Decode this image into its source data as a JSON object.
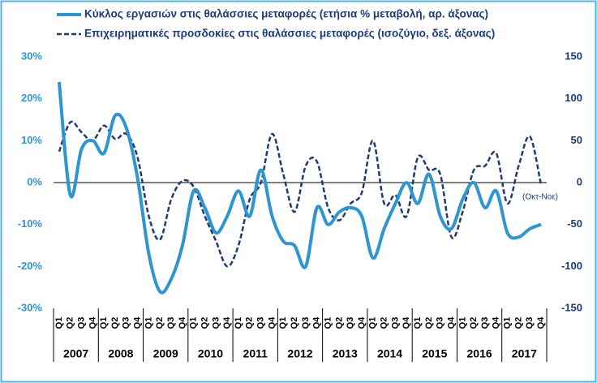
{
  "chart_data": {
    "type": "line",
    "series": [
      {
        "name": "Κύκλος εργασιών στις θαλάσσιες μεταφορές (ετήσια % μεταβολή, αρ. άξονας)",
        "color": "#2e95d3",
        "style": "solid",
        "values": [
          24,
          -3,
          8,
          10,
          7,
          16,
          13,
          1,
          -17,
          -26,
          -23,
          -15,
          -2,
          -6,
          -12,
          -8,
          -2,
          -8,
          3,
          -8,
          -14,
          -15,
          -20,
          -6,
          -10,
          -7,
          -6,
          -8,
          -18,
          -11,
          -5,
          0,
          -5,
          2,
          -8,
          -11,
          -4,
          0,
          -6,
          -2,
          -12,
          -13,
          -11,
          -10
        ]
      },
      {
        "name": "Επιχειρηματικές προσδοκίες στις θαλάσσιες μεταφορές (ισοζύγιο, δεξ. άξονας)",
        "color": "#1f3a78",
        "style": "dashed",
        "axis": "y2",
        "values": [
          37,
          72,
          60,
          50,
          68,
          52,
          58,
          30,
          -40,
          -68,
          -20,
          2,
          -5,
          -40,
          -70,
          -100,
          -75,
          -20,
          0,
          58,
          10,
          -35,
          20,
          25,
          -30,
          -45,
          -25,
          -12,
          50,
          -25,
          -15,
          -40,
          30,
          15,
          10,
          -65,
          -35,
          15,
          20,
          35,
          -25,
          20,
          55,
          -3
        ]
      }
    ],
    "categories": [
      "Q1",
      "Q2",
      "Q3",
      "Q4",
      "Q1",
      "Q2",
      "Q3",
      "Q4",
      "Q1",
      "Q2",
      "Q3",
      "Q4",
      "Q1",
      "Q2",
      "Q3",
      "Q4",
      "Q1",
      "Q2",
      "Q3",
      "Q4",
      "Q1",
      "Q2",
      "Q3",
      "Q4",
      "Q1",
      "Q2",
      "Q3",
      "Q4",
      "Q1",
      "Q2",
      "Q3",
      "Q4",
      "Q1",
      "Q2",
      "Q3",
      "Q4",
      "Q1",
      "Q2",
      "Q3",
      "Q4",
      "Q1",
      "Q2",
      "Q3",
      "Q4"
    ],
    "year_groups": [
      "2007",
      "2008",
      "2009",
      "2010",
      "2011",
      "2012",
      "2013",
      "2014",
      "2015",
      "2016",
      "2017"
    ],
    "ylim": [
      -30,
      30
    ],
    "yticks": [
      {
        "value": 30,
        "label": "30%"
      },
      {
        "value": 20,
        "label": "20%"
      },
      {
        "value": 10,
        "label": "10%"
      },
      {
        "value": 0,
        "label": "0%"
      },
      {
        "value": -10,
        "label": "-10%"
      },
      {
        "value": -20,
        "label": "-20%"
      },
      {
        "value": -30,
        "label": "-30%"
      }
    ],
    "y2lim": [
      -150,
      150
    ],
    "y2ticks": [
      150,
      100,
      50,
      0,
      -50,
      -100,
      -150
    ],
    "annotation": "(Οκτ-Νοε)"
  }
}
